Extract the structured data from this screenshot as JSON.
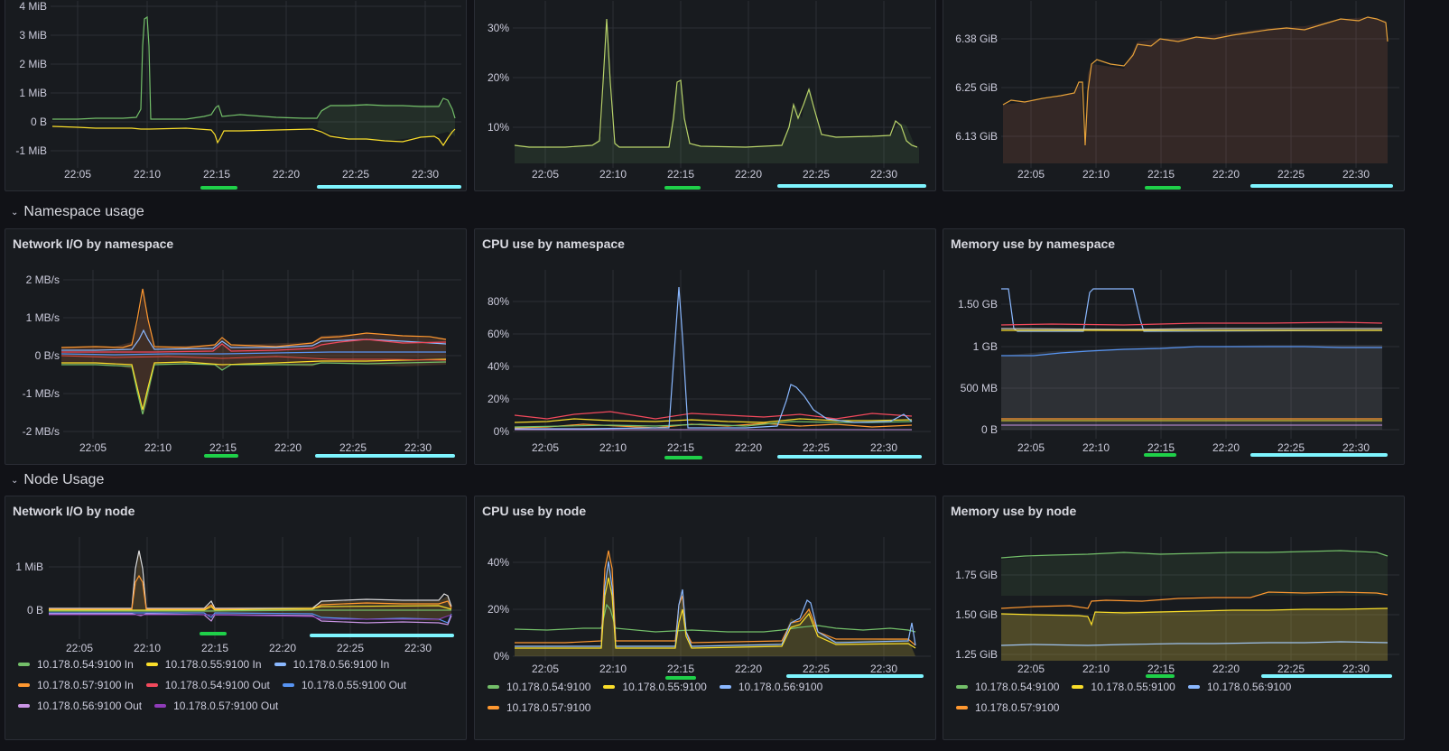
{
  "colors": {
    "green": "#73bf69",
    "yellow": "#fade2a",
    "blue": "#8ab8ff",
    "red": "#f2495c",
    "orange": "#ff9830",
    "purple": "#ca95e5",
    "violet": "#8f3bb8",
    "dblue": "#5794f2",
    "cyan": "#7ef5ff",
    "mark": "#1fd049"
  },
  "rows": {
    "namespace": "Namespace usage",
    "node": "Node Usage"
  },
  "panels": [
    {
      "id": "p1",
      "title": "",
      "y_ticks": [
        "4 MiB",
        "3 MiB",
        "2 MiB",
        "1 MiB",
        "0 B",
        "-1 MiB"
      ],
      "x_ticks": [
        "22:05",
        "22:10",
        "22:15",
        "22:20",
        "22:25",
        "22:30"
      ]
    },
    {
      "id": "p2",
      "title": "",
      "y_ticks": [
        "30%",
        "20%",
        "10%"
      ],
      "x_ticks": [
        "22:05",
        "22:10",
        "22:15",
        "22:20",
        "22:25",
        "22:30"
      ]
    },
    {
      "id": "p3",
      "title": "",
      "y_ticks": [
        "6.38 GiB",
        "6.25 GiB",
        "6.13 GiB"
      ],
      "x_ticks": [
        "22:05",
        "22:10",
        "22:15",
        "22:20",
        "22:25",
        "22:30"
      ]
    },
    {
      "id": "p4",
      "title": "Network I/O by namespace",
      "y_ticks": [
        "2 MB/s",
        "1 MB/s",
        "0 B/s",
        "-1 MB/s",
        "-2 MB/s"
      ],
      "x_ticks": [
        "22:05",
        "22:10",
        "22:15",
        "22:20",
        "22:25",
        "22:30"
      ]
    },
    {
      "id": "p5",
      "title": "CPU use by namespace",
      "y_ticks": [
        "80%",
        "60%",
        "40%",
        "20%",
        "0%"
      ],
      "x_ticks": [
        "22:05",
        "22:10",
        "22:15",
        "22:20",
        "22:25",
        "22:30"
      ]
    },
    {
      "id": "p6",
      "title": "Memory use by namespace",
      "y_ticks": [
        "1.50 GB",
        "1 GB",
        "500 MB",
        "0 B"
      ],
      "x_ticks": [
        "22:05",
        "22:10",
        "22:15",
        "22:20",
        "22:25",
        "22:30"
      ]
    },
    {
      "id": "p7",
      "title": "Network I/O by node",
      "y_ticks": [
        "1 MiB",
        "0 B"
      ],
      "x_ticks": [
        "22:05",
        "22:10",
        "22:15",
        "22:20",
        "22:25",
        "22:30"
      ]
    },
    {
      "id": "p8",
      "title": "CPU use by node",
      "y_ticks": [
        "40%",
        "20%",
        "0%"
      ],
      "x_ticks": [
        "22:05",
        "22:10",
        "22:15",
        "22:20",
        "22:25",
        "22:30"
      ]
    },
    {
      "id": "p9",
      "title": "Memory use by node",
      "y_ticks": [
        "1.75 GiB",
        "1.50 GiB",
        "1.25 GiB"
      ],
      "x_ticks": [
        "22:05",
        "22:10",
        "22:15",
        "22:20",
        "22:25",
        "22:30"
      ]
    }
  ],
  "legends": {
    "network_node": [
      "10.178.0.54:9100 In",
      "10.178.0.55:9100 In",
      "10.178.0.56:9100 In",
      "10.178.0.57:9100 In",
      "10.178.0.54:9100 Out",
      "10.178.0.55:9100 Out",
      "10.178.0.56:9100 Out",
      "10.178.0.57:9100 Out"
    ],
    "cpu_node": [
      "10.178.0.54:9100",
      "10.178.0.55:9100",
      "10.178.0.56:9100",
      "10.178.0.57:9100"
    ],
    "mem_node": [
      "10.178.0.54:9100",
      "10.178.0.55:9100",
      "10.178.0.56:9100",
      "10.178.0.57:9100"
    ]
  }
}
